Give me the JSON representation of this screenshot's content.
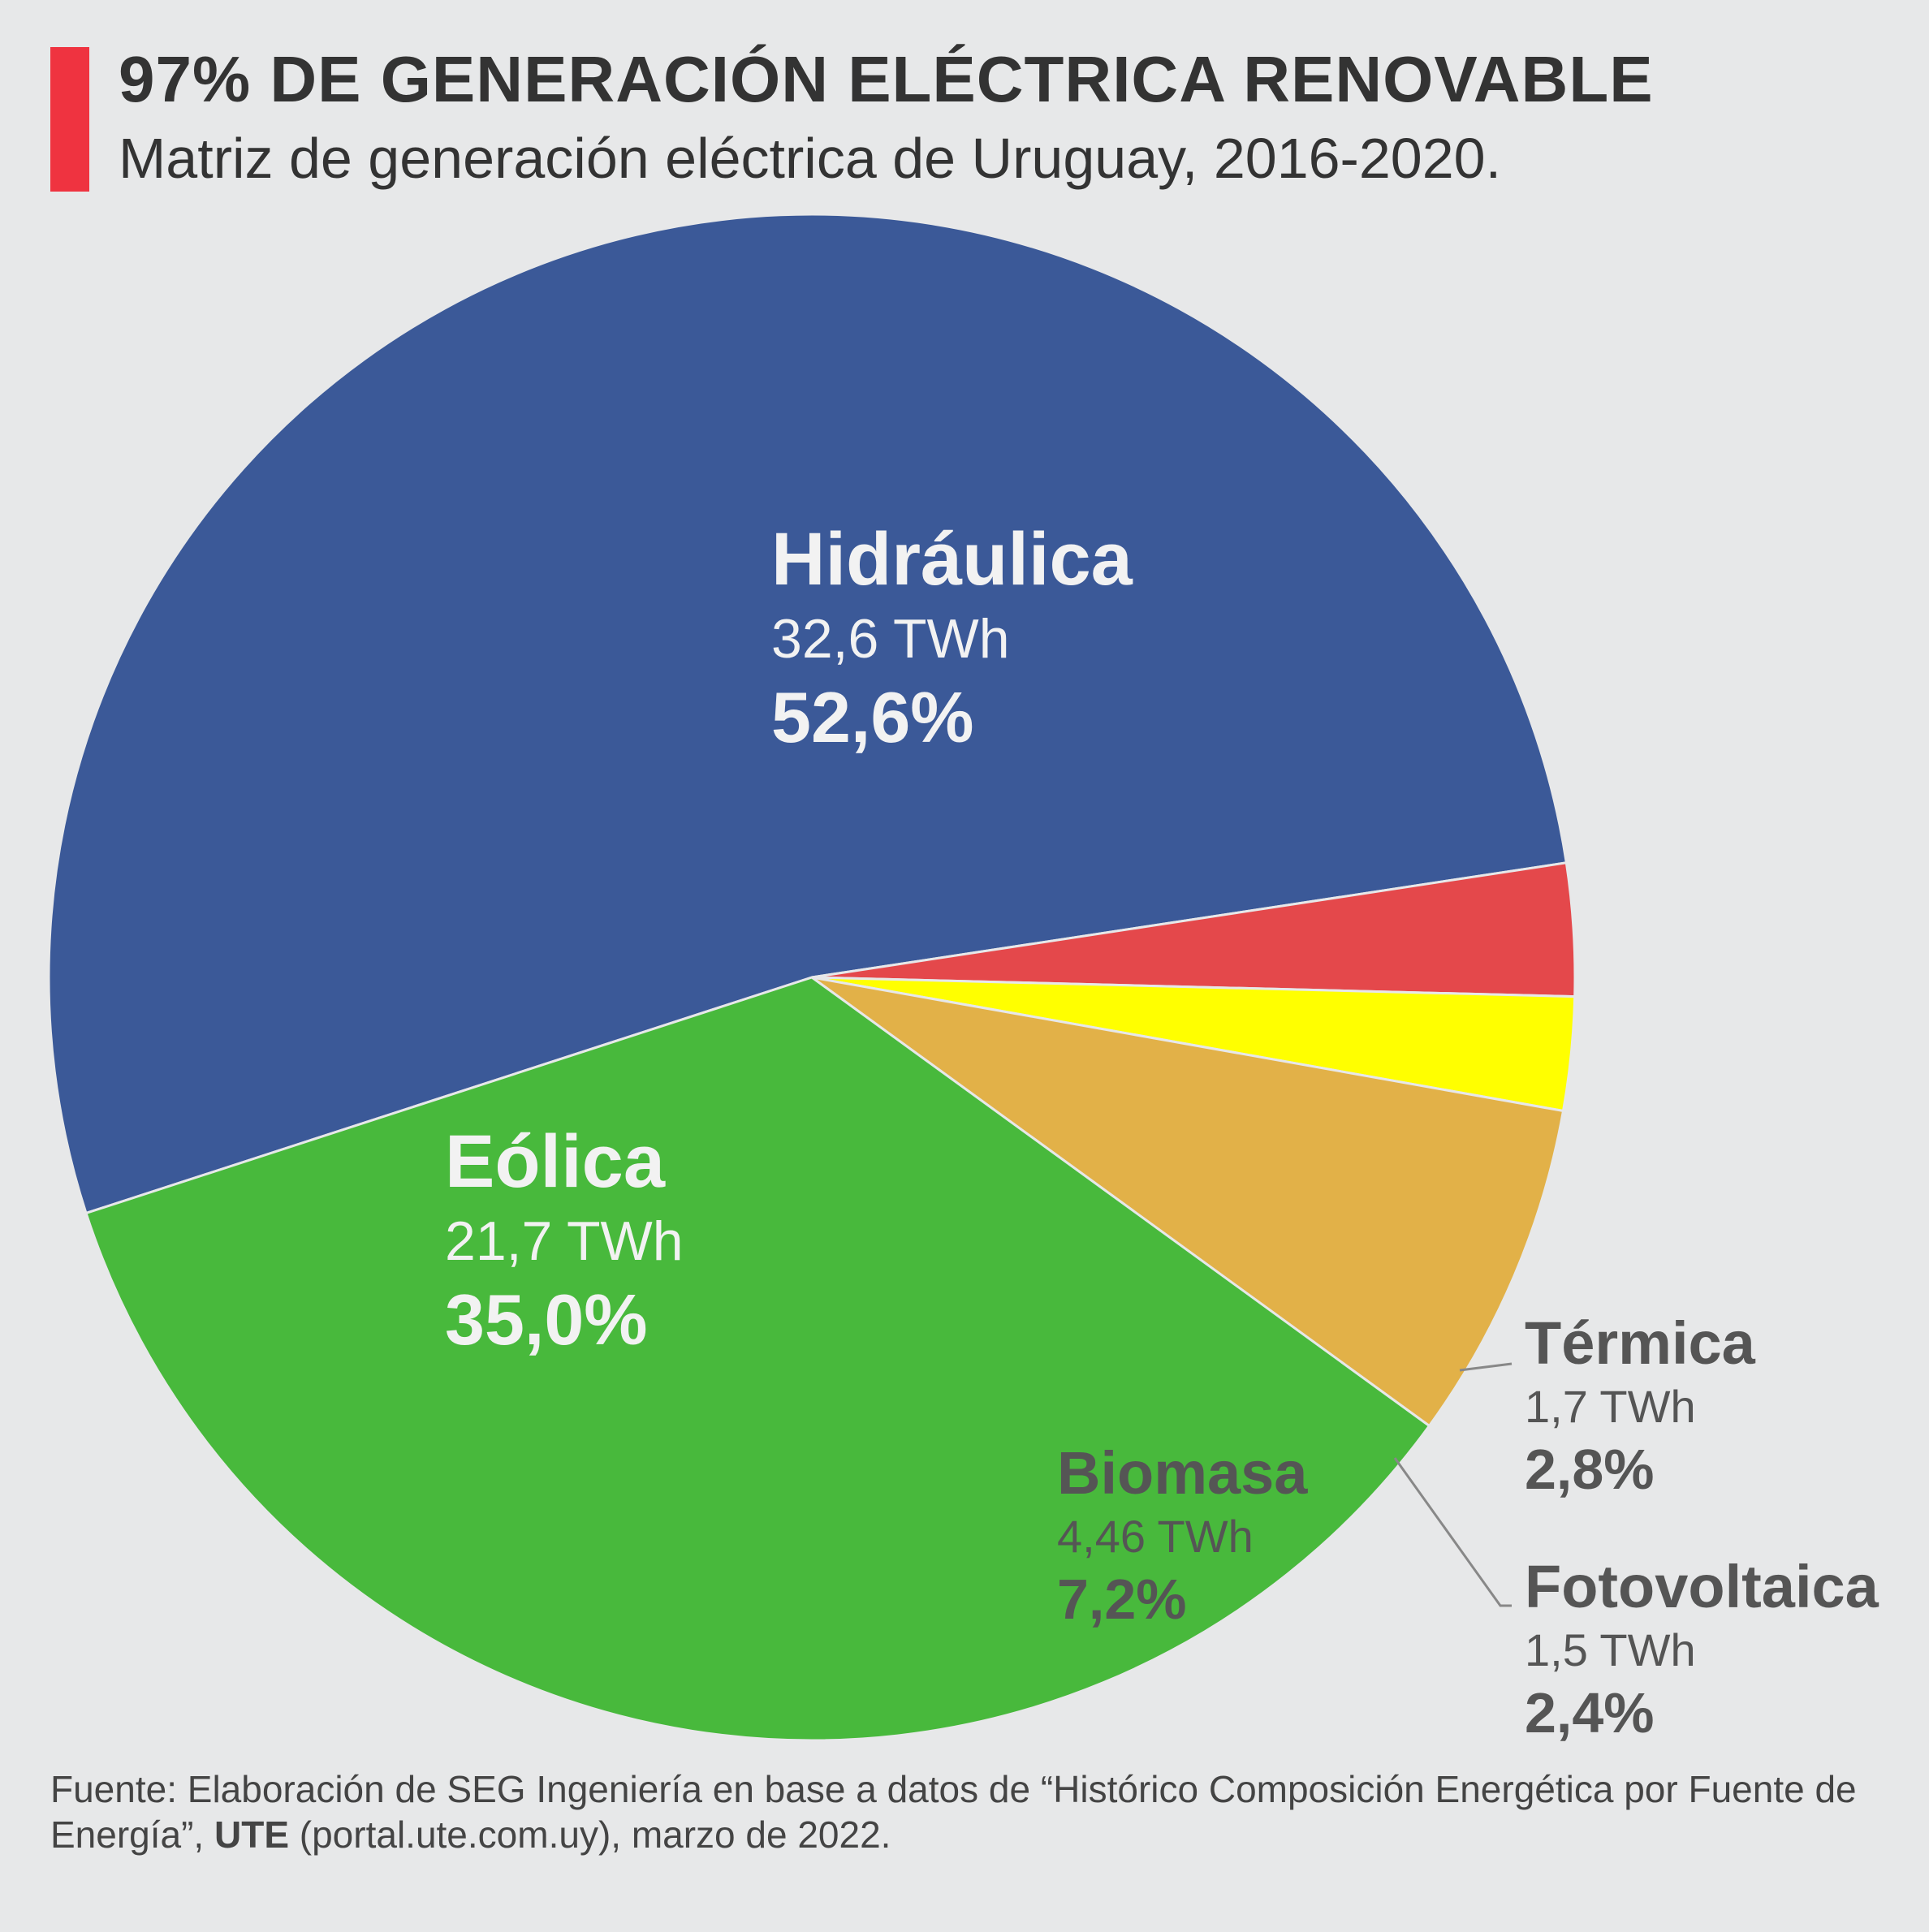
{
  "header": {
    "title": "97% DE GENERACIÓN ELÉCTRICA RENOVABLE",
    "subtitle": "Matriz de generación eléctrica de Uruguay, 2016-2020.",
    "accent_color": "#ef3340"
  },
  "chart_data": {
    "type": "pie",
    "title": "97% DE GENERACIÓN ELÉCTRICA RENOVABLE",
    "subtitle": "Matriz de generación eléctrica de Uruguay, 2016-2020.",
    "unit": "TWh",
    "start_angle_deg": 162,
    "slices": [
      {
        "label": "Hidráulica",
        "value": 32.6,
        "value_text": "32,6 TWh",
        "percent": 52.6,
        "percent_text": "52,6%",
        "color": "#3b5998",
        "text_color": "#f2f2f2"
      },
      {
        "label": "Térmica",
        "value": 1.7,
        "value_text": "1,7 TWh",
        "percent": 2.8,
        "percent_text": "2,8%",
        "color": "#e4484b",
        "text_color": "#555555"
      },
      {
        "label": "Fotovoltaica",
        "value": 1.5,
        "value_text": "1,5 TWh",
        "percent": 2.4,
        "percent_text": "2,4%",
        "color": "#ffff00",
        "text_color": "#555555"
      },
      {
        "label": "Biomasa",
        "value": 4.46,
        "value_text": "4,46 TWh",
        "percent": 7.2,
        "percent_text": "7,2%",
        "color": "#e2b148",
        "text_color": "#555555"
      },
      {
        "label": "Eólica",
        "value": 21.7,
        "value_text": "21,7 TWh",
        "percent": 35.0,
        "percent_text": "35,0%",
        "color": "#48b93c",
        "text_color": "#f2f2f2"
      }
    ]
  },
  "source": {
    "prefix": "Fuente: Elaboración de SEG Ingeniería en base a datos de “Histórico Composición Energética por Fuente de Energía”, ",
    "org": "UTE",
    "suffix": " (portal.ute.com.uy), marzo de 2022."
  }
}
